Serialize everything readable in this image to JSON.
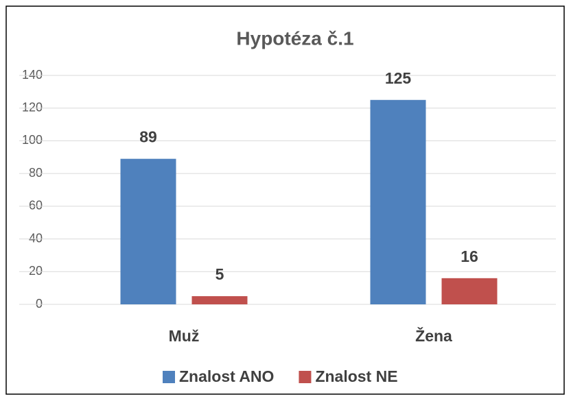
{
  "chart_data": {
    "type": "bar",
    "title": "Hypotéza č.1",
    "categories": [
      "Muž",
      "Žena"
    ],
    "series": [
      {
        "name": "Znalost ANO",
        "color": "#4f81bd",
        "values": [
          89,
          125
        ]
      },
      {
        "name": "Znalost NE",
        "color": "#c0504d",
        "values": [
          5,
          16
        ]
      }
    ],
    "ylim": [
      0,
      140
    ],
    "yticks": [
      0,
      20,
      40,
      60,
      80,
      100,
      120,
      140
    ],
    "grid": true,
    "legend": "bottom"
  }
}
